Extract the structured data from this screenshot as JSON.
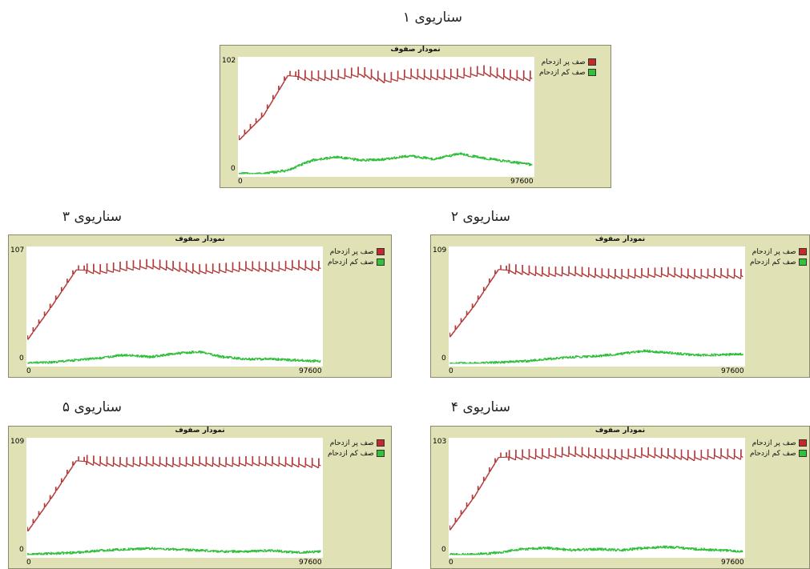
{
  "chart_data": [
    {
      "type": "line",
      "caption": "سناریوی ۱",
      "title": "نمودار صفوف",
      "xlim": [
        0,
        97600
      ],
      "ylim": [
        0,
        102
      ],
      "x_tick_labels": [
        "0",
        "97600"
      ],
      "y_tick_labels": [
        "0",
        "102"
      ],
      "legend_position": "right",
      "series": [
        {
          "name": "صف پر ازدحام",
          "color": "#b33a3a",
          "values": [
            30,
            52,
            88,
            86,
            87,
            90,
            84,
            88,
            87,
            88,
            91,
            87,
            86
          ]
        },
        {
          "name": "صف کم ازدحام",
          "color": "#2fbf3a",
          "values": [
            0,
            0,
            3,
            12,
            15,
            12,
            13,
            16,
            13,
            18,
            14,
            11,
            8
          ]
        }
      ]
    },
    {
      "type": "line",
      "caption": "سناریوی ۲",
      "title": "نمودار صفوف",
      "xlim": [
        0,
        97600
      ],
      "ylim": [
        0,
        109
      ],
      "x_tick_labels": [
        "0",
        "97600"
      ],
      "y_tick_labels": [
        "0",
        "109"
      ],
      "legend_position": "right",
      "series": [
        {
          "name": "صف پر ازدحام",
          "color": "#b33a3a",
          "values": [
            25,
            55,
            90,
            88,
            86,
            87,
            85,
            84,
            85,
            86,
            84,
            85,
            84
          ]
        },
        {
          "name": "صف کم ازدحام",
          "color": "#2fbf3a",
          "values": [
            0,
            0,
            1,
            2,
            4,
            6,
            7,
            9,
            12,
            10,
            8,
            8,
            9
          ]
        }
      ]
    },
    {
      "type": "line",
      "caption": "سناریوی ۳",
      "title": "نمودار صفوف",
      "xlim": [
        0,
        97600
      ],
      "ylim": [
        0,
        107
      ],
      "x_tick_labels": [
        "0",
        "97600"
      ],
      "y_tick_labels": [
        "0",
        "107"
      ],
      "legend_position": "right",
      "series": [
        {
          "name": "صف پر ازدحام",
          "color": "#b33a3a",
          "values": [
            22,
            54,
            88,
            87,
            90,
            92,
            90,
            87,
            88,
            90,
            89,
            91,
            90
          ]
        },
        {
          "name": "صف کم ازدحام",
          "color": "#2fbf3a",
          "values": [
            0,
            1,
            3,
            5,
            8,
            6,
            9,
            11,
            6,
            4,
            4,
            3,
            2
          ]
        }
      ]
    },
    {
      "type": "line",
      "caption": "سناریوی ۴",
      "title": "نمودار صفوف",
      "xlim": [
        0,
        97600
      ],
      "ylim": [
        0,
        103
      ],
      "x_tick_labels": [
        "0",
        "97600"
      ],
      "y_tick_labels": [
        "0",
        "103"
      ],
      "legend_position": "right",
      "series": [
        {
          "name": "صف پر ازدحام",
          "color": "#b33a3a",
          "values": [
            22,
            52,
            88,
            89,
            90,
            92,
            90,
            89,
            91,
            90,
            88,
            90,
            89
          ]
        },
        {
          "name": "صف کم ازدحام",
          "color": "#2fbf3a",
          "values": [
            0,
            0,
            2,
            5,
            6,
            4,
            5,
            4,
            6,
            7,
            5,
            4,
            3
          ]
        }
      ]
    },
    {
      "type": "line",
      "caption": "سناریوی ۵",
      "title": "نمودار صفوف",
      "xlim": [
        0,
        97600
      ],
      "ylim": [
        0,
        109
      ],
      "x_tick_labels": [
        "0",
        "97600"
      ],
      "y_tick_labels": [
        "0",
        "109"
      ],
      "legend_position": "right",
      "series": [
        {
          "name": "صف پر ازدحام",
          "color": "#b33a3a",
          "values": [
            22,
            55,
            90,
            88,
            87,
            88,
            87,
            88,
            87,
            88,
            88,
            87,
            86
          ]
        },
        {
          "name": "صف کم ازدحام",
          "color": "#2fbf3a",
          "values": [
            0,
            1,
            2,
            4,
            5,
            6,
            5,
            4,
            3,
            3,
            4,
            2,
            3
          ]
        }
      ]
    }
  ]
}
